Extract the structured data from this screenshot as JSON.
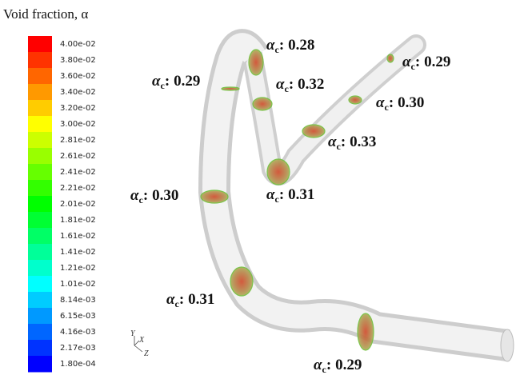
{
  "legend": {
    "title": "Void fraction, α",
    "labels": [
      "4.00e-02",
      "3.80e-02",
      "3.60e-02",
      "3.40e-02",
      "3.20e-02",
      "3.00e-02",
      "2.81e-02",
      "2.61e-02",
      "2.41e-02",
      "2.21e-02",
      "2.01e-02",
      "1.81e-02",
      "1.61e-02",
      "1.41e-02",
      "1.21e-02",
      "1.01e-02",
      "8.14e-03",
      "6.15e-03",
      "4.16e-03",
      "2.17e-03",
      "1.80e-04"
    ]
  },
  "axes": [
    "Y",
    "X",
    "Z"
  ],
  "annotation_symbol": "α",
  "annotation_subscript": "c",
  "annotation_separator": ":",
  "annotations": [
    "0.28",
    "0.29",
    "0.32",
    "0.29",
    "0.30",
    "0.33",
    "0.30",
    "0.31",
    "0.31",
    "0.29"
  ]
}
